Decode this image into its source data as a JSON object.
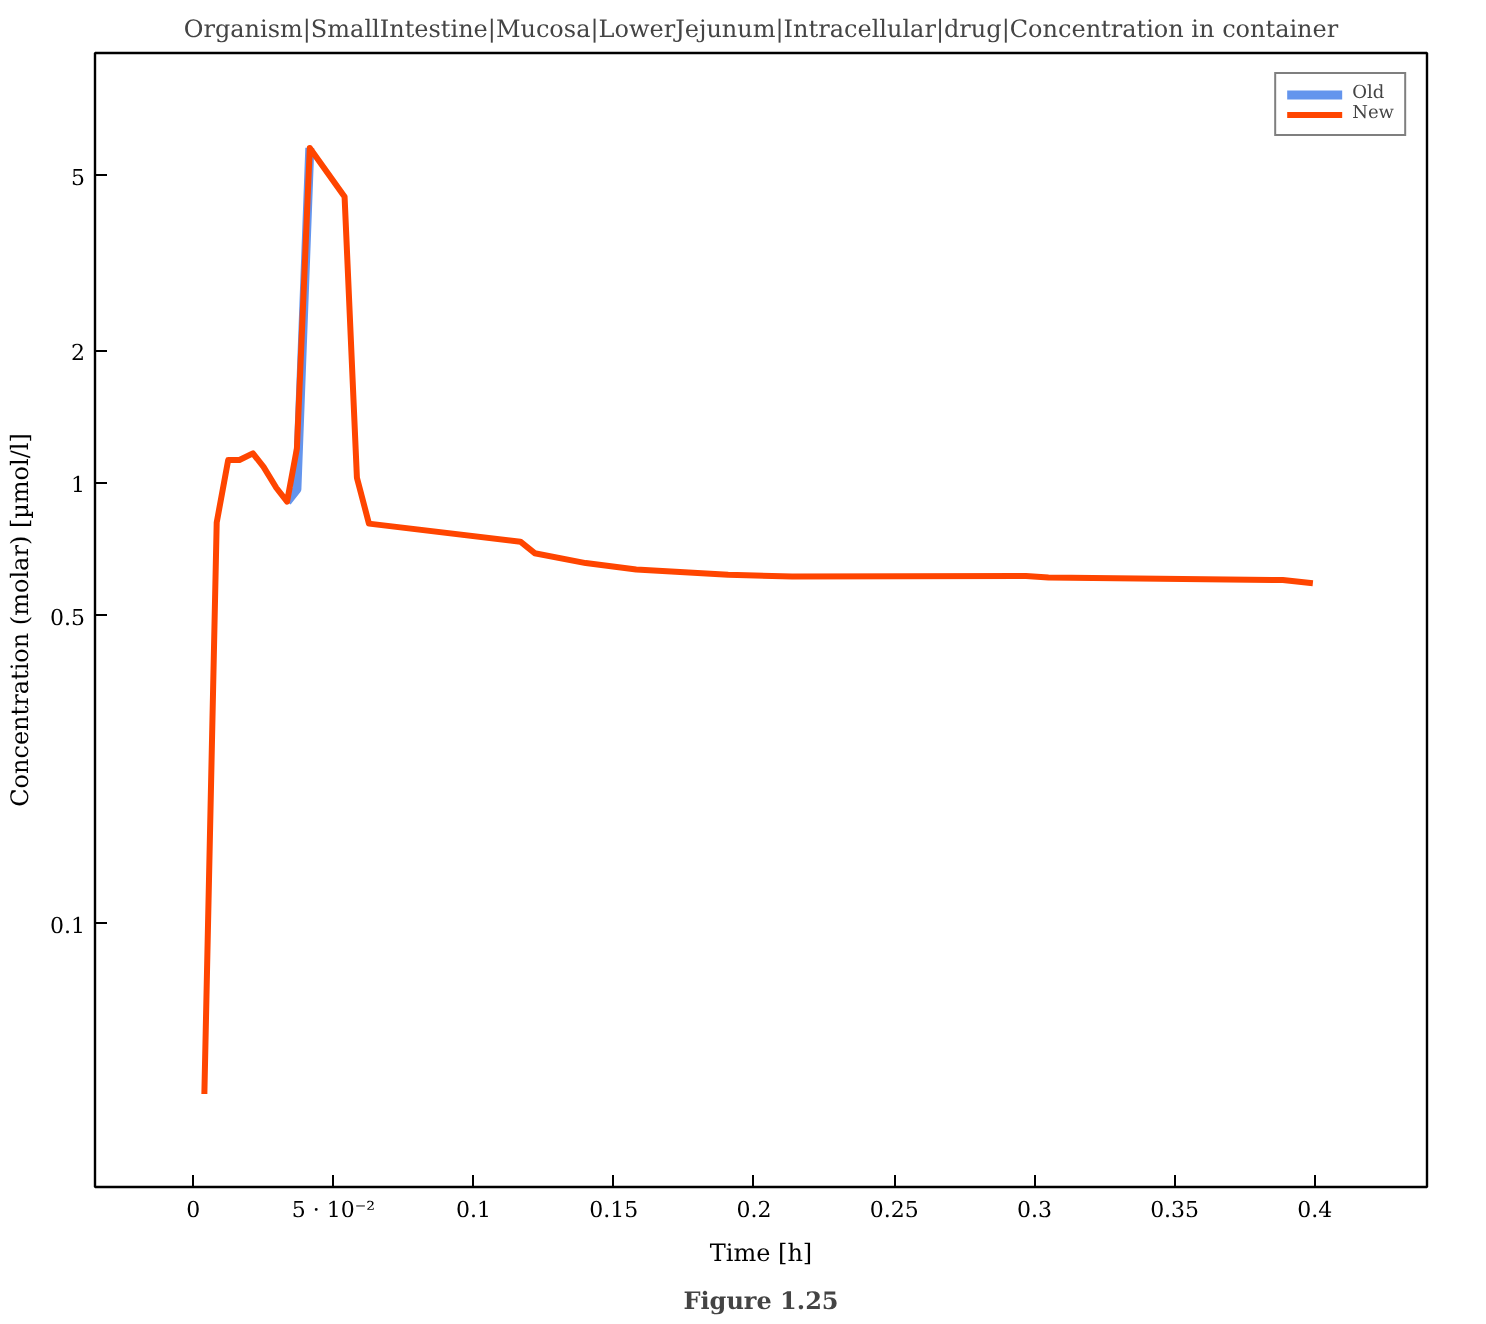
{
  "chart_data": {
    "type": "line",
    "title": "Organism|SmallIntestine|Mucosa|LowerJejunum|Intracellular|drug|Concentration in container",
    "xlabel": "Time [h]",
    "ylabel": "Concentration (molar) [µmol/l]",
    "annotations": [
      "Figure 1.25"
    ],
    "x": [
      0.004,
      0.0084,
      0.0125,
      0.0165,
      0.0213,
      0.0251,
      0.0297,
      0.0335,
      0.037,
      0.0416,
      0.054,
      0.0584,
      0.0627,
      0.1167,
      0.1218,
      0.14,
      0.158,
      0.1908,
      0.2136,
      0.297,
      0.305,
      0.3886,
      0.3993
    ],
    "series": [
      {
        "name": "Old",
        "color": "#6495ed",
        "values": [
          null,
          null,
          null,
          null,
          null,
          null,
          null,
          0.909,
          0.97,
          5.78,
          null,
          null,
          null,
          null,
          null,
          null,
          null,
          null,
          null,
          null,
          null,
          null,
          null
        ]
      },
      {
        "name": "New",
        "color": "#ff4500",
        "values": [
          0.041,
          0.815,
          1.13,
          1.13,
          1.17,
          1.09,
          0.976,
          0.909,
          1.2,
          5.78,
          4.48,
          1.03,
          0.81,
          0.737,
          0.694,
          0.659,
          0.637,
          0.62,
          0.614,
          0.616,
          0.611,
          0.603,
          0.593
        ]
      }
    ],
    "log": "y",
    "xlim": [
      -0.035,
      0.44
    ],
    "ylim": [
      0.0252,
      9.5
    ],
    "xticks": [
      0,
      {
        "value": 0.05,
        "label": "5 · 10⁻²"
      },
      0.1,
      0.15,
      0.2,
      0.25,
      0.3,
      0.35,
      0.4
    ],
    "yticks": [
      0.1,
      0.5,
      1,
      2,
      5
    ],
    "legend": "top right",
    "grid": false,
    "line_style": "solid"
  }
}
